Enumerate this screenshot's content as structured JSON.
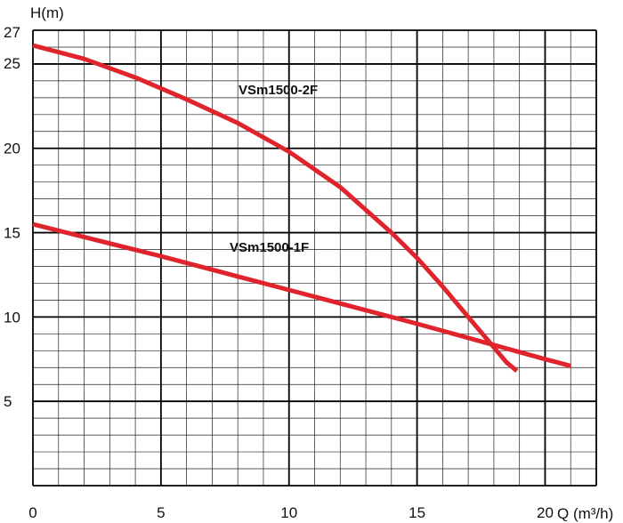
{
  "chart_data": {
    "type": "line",
    "xlabel": "Q (m³/h)",
    "ylabel": "H(m)",
    "xlim": [
      0,
      22
    ],
    "ylim": [
      0,
      27
    ],
    "x_ticks": [
      0,
      5,
      10,
      15,
      20
    ],
    "y_ticks": [
      5,
      10,
      15,
      20,
      25,
      27
    ],
    "grid": "on",
    "series": [
      {
        "name": "VSm1500-2F",
        "color": "#e0242c",
        "x": [
          0,
          2,
          4,
          6,
          8,
          10,
          12,
          14,
          15,
          16,
          17,
          18,
          18.5,
          18.9
        ],
        "y": [
          26.1,
          25.3,
          24.2,
          22.9,
          21.5,
          19.8,
          17.7,
          15.0,
          13.5,
          11.8,
          10.0,
          8.2,
          7.3,
          6.8
        ]
      },
      {
        "name": "VSm1500-1F",
        "color": "#e0242c",
        "x": [
          0,
          5,
          10,
          15,
          20,
          21
        ],
        "y": [
          15.5,
          13.6,
          11.6,
          9.6,
          7.5,
          7.1
        ]
      }
    ]
  }
}
